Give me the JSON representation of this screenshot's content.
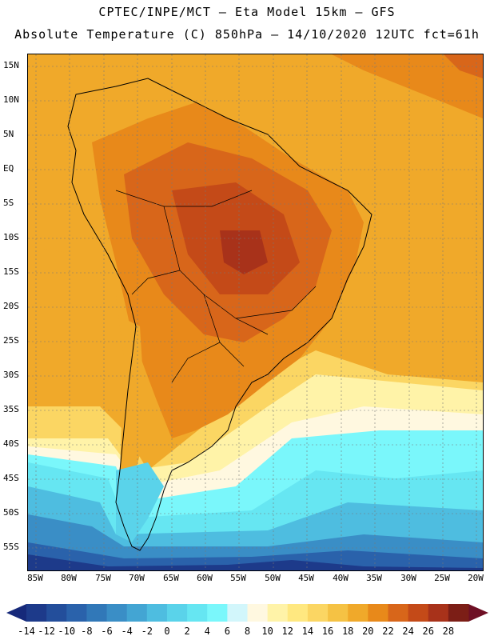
{
  "header": {
    "line1": "CPTEC/INPE/MCT –  Eta Model 15km – GFS",
    "line2": "Absolute Temperature (C) 850hPa – 14/10/2020 12UTC fct=61h"
  },
  "axes": {
    "lat_labels": [
      "15N",
      "10N",
      "5N",
      "EQ",
      "5S",
      "10S",
      "15S",
      "20S",
      "25S",
      "30S",
      "35S",
      "40S",
      "45S",
      "50S",
      "55S"
    ],
    "lon_labels": [
      "85W",
      "80W",
      "75W",
      "70W",
      "65W",
      "60W",
      "55W",
      "50W",
      "45W",
      "40W",
      "35W",
      "30W",
      "25W",
      "20W"
    ]
  },
  "colorbar": {
    "labels": [
      "-14",
      "-12",
      "-10",
      "-8",
      "-6",
      "-4",
      "-2",
      "0",
      "2",
      "4",
      "6",
      "8",
      "10",
      "12",
      "14",
      "16",
      "18",
      "20",
      "22",
      "24",
      "26",
      "28"
    ],
    "colors": [
      "#1d3a8a",
      "#234e9b",
      "#2a62ab",
      "#3178b8",
      "#3a8ec6",
      "#43a5d3",
      "#4ebde0",
      "#5ad3ea",
      "#66e6f2",
      "#7af7fb",
      "#d2f6fb",
      "#fff8e0",
      "#fff3a8",
      "#ffe880",
      "#fbd663",
      "#f5c244",
      "#f0a92a",
      "#e8891a",
      "#d8661a",
      "#c44a18",
      "#a8321a",
      "#7c1e16"
    ],
    "under_color": "#16297a",
    "over_color": "#6e0f24"
  }
}
